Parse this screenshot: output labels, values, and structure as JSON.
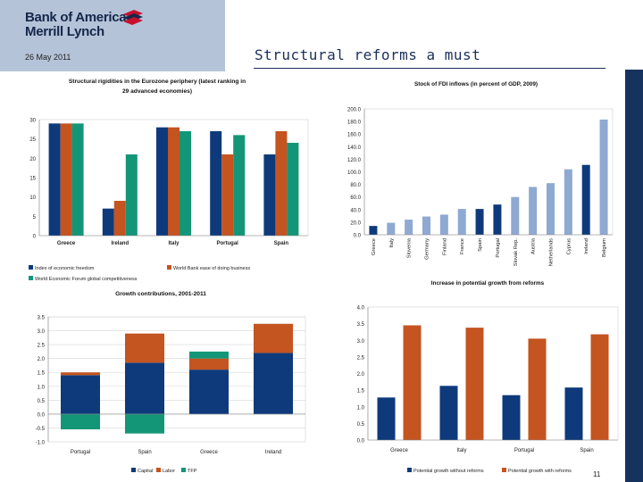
{
  "header": {
    "brand_line1": "Bank of America",
    "brand_line2": "Merrill Lynch",
    "date": "26 May 2011",
    "title": "Structural reforms a must",
    "page_number": "11"
  },
  "colors": {
    "navy": "#0e3a7c",
    "orange": "#c45420",
    "green": "#139677",
    "lightblue": "#8ea9d2",
    "strip": "#16335f"
  },
  "chart_data": [
    {
      "id": "rigidities",
      "type": "bar",
      "title": "Structural rigidities in the Eurozone periphery (latest ranking in 29 advanced economies)",
      "title_lines": [
        "Structural rigidities in the Eurozone periphery (latest ranking in",
        "29 advanced economies)"
      ],
      "categories": [
        "Greece",
        "Ireland",
        "Italy",
        "Portugal",
        "Spain"
      ],
      "ylim": [
        0,
        30
      ],
      "yticks": [
        "0",
        "5",
        "10",
        "15",
        "20",
        "25",
        "30"
      ],
      "series": [
        {
          "name": "Index of economic freedom",
          "color": "#0e3a7c",
          "values": [
            29,
            7,
            28,
            27,
            21
          ]
        },
        {
          "name": "World Bank ease of doing business",
          "color": "#c45420",
          "values": [
            29,
            9,
            28,
            21,
            27
          ]
        },
        {
          "name": "World Economic Forum global competitiveness",
          "color": "#139677",
          "values": [
            29,
            21,
            27,
            26,
            24
          ]
        }
      ],
      "legend": "bottom"
    },
    {
      "id": "fdi",
      "type": "bar",
      "title": "Stock of FDI inflows (in percent of GDP, 2009)",
      "categories": [
        "Greece",
        "Italy",
        "Slovenia",
        "Germany",
        "Finland",
        "France",
        "Spain",
        "Portugal",
        "Slovak Rep.",
        "Austria",
        "Netherlands",
        "Cyprus",
        "Ireland",
        "Belgium"
      ],
      "values": [
        14,
        19,
        24,
        29,
        32,
        41,
        41,
        48,
        60,
        76,
        82,
        104,
        111,
        183
      ],
      "highlight": [
        true,
        false,
        false,
        false,
        false,
        false,
        true,
        true,
        false,
        false,
        false,
        false,
        true,
        false
      ],
      "ylim": [
        0,
        200
      ],
      "yticks": [
        "0.0",
        "20.0",
        "40.0",
        "60.0",
        "80.0",
        "100.0",
        "120.0",
        "140.0",
        "160.0",
        "180.0",
        "200.0"
      ],
      "colors": {
        "highlight": "#0e3a7c",
        "other": "#8ea9d2"
      }
    },
    {
      "id": "growth",
      "type": "bar",
      "subtype": "stacked",
      "title": "Growth contributions, 2001-2011",
      "categories": [
        "Portugal",
        "Spain",
        "Greece",
        "Ireland"
      ],
      "ylim": [
        -1.0,
        3.5
      ],
      "yticks": [
        "-1.0",
        "-0.5",
        "0.0",
        "0.5",
        "1.0",
        "1.5",
        "2.0",
        "2.5",
        "3.0",
        "3.5"
      ],
      "series": [
        {
          "name": "Capital",
          "color": "#0e3a7c",
          "values": [
            1.4,
            1.85,
            1.6,
            2.2
          ]
        },
        {
          "name": "Labor",
          "color": "#c45420",
          "values": [
            0.1,
            1.05,
            0.4,
            1.05
          ]
        },
        {
          "name": "TFP",
          "color": "#139677",
          "values": [
            -0.55,
            -0.7,
            0.25,
            0.0
          ]
        }
      ],
      "legend": "bottom"
    },
    {
      "id": "potential",
      "type": "bar",
      "title": "Increase in potential growth from reforms",
      "categories": [
        "Greece",
        "Italy",
        "Portugal",
        "Spain"
      ],
      "ylim": [
        0,
        4.0
      ],
      "yticks": [
        "0.0",
        "0.5",
        "1.0",
        "1.5",
        "2.0",
        "2.5",
        "3.0",
        "3.5",
        "4.0"
      ],
      "series": [
        {
          "name": "Potential growth without reforms",
          "color": "#0e3a7c",
          "values": [
            1.28,
            1.63,
            1.35,
            1.58
          ]
        },
        {
          "name": "Potential growth with reforms",
          "color": "#c45420",
          "values": [
            3.45,
            3.38,
            3.05,
            3.18
          ]
        }
      ],
      "legend": "bottom"
    }
  ]
}
